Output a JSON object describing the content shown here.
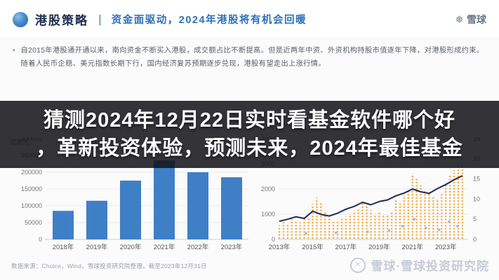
{
  "header": {
    "brand": "港股策略",
    "separator": "|",
    "subtitle": "资金面驱动，2024年港股将有机会回暖",
    "logo_text": "雪球"
  },
  "icons": {
    "xueqiu_mark": "❅",
    "watermark_circle_x": "✕"
  },
  "summary": {
    "bullet": "•",
    "text": "自2015年港股通开通以来，南向资金不断买入港股，成交额占比不断提高。但是近两年中资、外资机构持股市值逐年下降，对港股形成约束。随着人民币企稳、美元指数长期下行，国内经济复苏预期逐步兑现，港股有望走出上涨行情。"
  },
  "overlay": {
    "line1": "猜测2024年12月22日实时看基金软件哪个好",
    "line2": "，革新投资体验，预测未来，2024年最佳基金"
  },
  "footer": {
    "source": "数据来源：Choice，Wind，雪球投资研究院整理，截至2023年12月31日",
    "watermark": "雪球·雪球投资研究院"
  },
  "chart_data": [
    {
      "type": "bar",
      "unit": "亿港元",
      "categories": [
        "2018年",
        "2019年",
        "2020年",
        "2021年",
        "2022年",
        "2023年"
      ],
      "values": [
        85000,
        115000,
        175000,
        235000,
        200000,
        185000
      ],
      "ylim": [
        0,
        300000
      ],
      "yticks": [
        0,
        50000,
        100000,
        150000,
        200000,
        250000,
        300000
      ],
      "bar_color": "#3f7fc6",
      "grid": true,
      "legend_position": "none"
    },
    {
      "type": "scatter",
      "x_ticks": [
        "2013年",
        "2015年",
        "2017年",
        "2019年",
        "2021年",
        "2023年"
      ],
      "x_tick_years": [
        2013,
        2015,
        2017,
        2019,
        2021,
        2023
      ],
      "xlim": [
        2013,
        2024.3
      ],
      "ylim_left": [
        0,
        4000
      ],
      "yticks_left": [
        0,
        1000,
        2000,
        3000,
        4000
      ],
      "ylim_right": [
        0,
        25
      ],
      "yticks_right": [
        0,
        5,
        10,
        15,
        20,
        25
      ],
      "column_color": "#f5a42a",
      "dot_color": "#8fc1ea",
      "line_color": "#20285a",
      "grid": true,
      "columns": [
        [
          2013.0,
          550
        ],
        [
          2013.25,
          700
        ],
        [
          2013.5,
          620
        ],
        [
          2013.75,
          800
        ],
        [
          2014.0,
          760
        ],
        [
          2014.25,
          680
        ],
        [
          2014.5,
          900
        ],
        [
          2014.75,
          840
        ],
        [
          2015.0,
          1400
        ],
        [
          2015.25,
          1650
        ],
        [
          2015.5,
          1480
        ],
        [
          2015.75,
          1120
        ],
        [
          2016.0,
          820
        ],
        [
          2016.25,
          700
        ],
        [
          2016.5,
          760
        ],
        [
          2016.75,
          860
        ],
        [
          2017.0,
          900
        ],
        [
          2017.25,
          960
        ],
        [
          2017.5,
          1060
        ],
        [
          2017.75,
          1220
        ],
        [
          2018.0,
          1500
        ],
        [
          2018.25,
          1340
        ],
        [
          2018.5,
          1160
        ],
        [
          2018.75,
          1020
        ],
        [
          2019.0,
          1060
        ],
        [
          2019.25,
          940
        ],
        [
          2019.5,
          1000
        ],
        [
          2019.75,
          1120
        ],
        [
          2020.0,
          1600
        ],
        [
          2020.25,
          1500
        ],
        [
          2020.5,
          1760
        ],
        [
          2020.75,
          1920
        ],
        [
          2021.0,
          2600
        ],
        [
          2021.25,
          2400
        ],
        [
          2021.5,
          2150
        ],
        [
          2021.75,
          1980
        ],
        [
          2022.0,
          1880
        ],
        [
          2022.25,
          1720
        ],
        [
          2022.5,
          1620
        ],
        [
          2022.75,
          1860
        ],
        [
          2023.0,
          2250
        ],
        [
          2023.25,
          2550
        ],
        [
          2023.5,
          2750
        ],
        [
          2023.75,
          2900
        ],
        [
          2024.0,
          2950
        ]
      ],
      "dots": [
        [
          2014.6,
          240
        ],
        [
          2016.4,
          260
        ],
        [
          2018.3,
          300
        ],
        [
          2019.6,
          350
        ],
        [
          2020.4,
          520
        ],
        [
          2021.1,
          800
        ],
        [
          2021.8,
          450
        ],
        [
          2022.6,
          380
        ],
        [
          2023.2,
          700
        ],
        [
          2023.7,
          520
        ]
      ],
      "line": [
        [
          2013,
          4.5
        ],
        [
          2013.5,
          5.0
        ],
        [
          2014,
          5.6
        ],
        [
          2014.5,
          5.2
        ],
        [
          2015,
          7.0
        ],
        [
          2015.5,
          6.2
        ],
        [
          2016,
          5.8
        ],
        [
          2016.5,
          6.5
        ],
        [
          2017,
          7.5
        ],
        [
          2017.5,
          8.2
        ],
        [
          2018,
          9.2
        ],
        [
          2018.5,
          8.6
        ],
        [
          2019,
          9.4
        ],
        [
          2019.5,
          9.8
        ],
        [
          2020,
          10.8
        ],
        [
          2020.5,
          11.5
        ],
        [
          2021,
          12.5
        ],
        [
          2021.5,
          11.8
        ],
        [
          2022,
          11.4
        ],
        [
          2022.5,
          12.6
        ],
        [
          2023,
          13.6
        ],
        [
          2023.5,
          14.8
        ],
        [
          2024,
          15.8
        ]
      ]
    }
  ]
}
